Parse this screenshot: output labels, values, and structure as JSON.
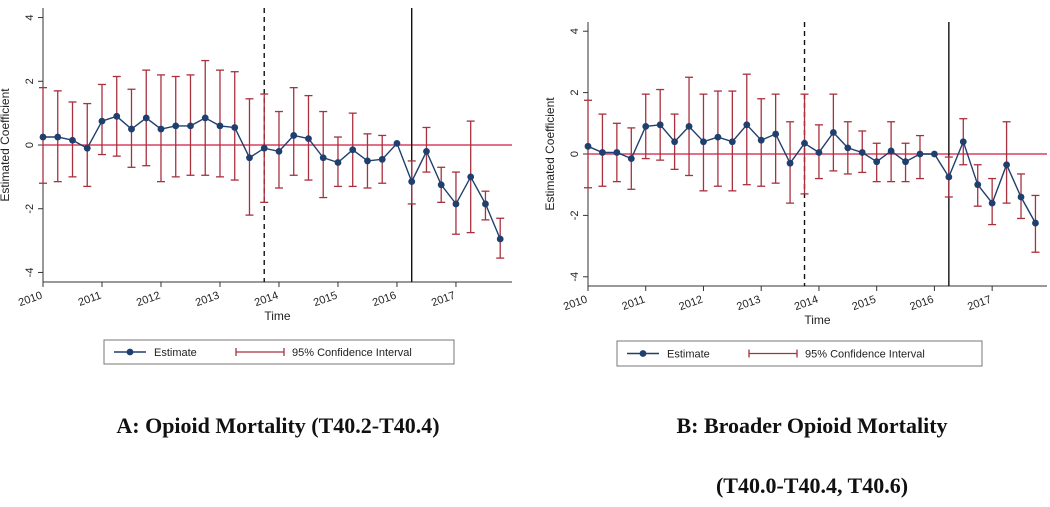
{
  "colors": {
    "estimate": "#1f3f6e",
    "ci": "#a8313e",
    "zero": "#d94060",
    "axis": "#333333"
  },
  "charts": [
    {
      "id": "A",
      "caption_lines": [
        "A: Opioid Mortality (T40.2-T40.4)"
      ],
      "ylabel": "Estimated Coefficient",
      "xlabel": "Time",
      "legend": {
        "estimate": "Estimate",
        "ci": "95% Confidence Interval"
      },
      "y_ticks": [
        "-4",
        "-2",
        "0",
        "2",
        "4"
      ],
      "x_ticks": [
        "2010",
        "2011",
        "2012",
        "2013",
        "2014",
        "2015",
        "2016",
        "2017"
      ]
    },
    {
      "id": "B",
      "caption_lines": [
        "B: Broader Opioid Mortality",
        "(T40.0-T40.4, T40.6)"
      ],
      "ylabel": "Estimated Coefficient",
      "xlabel": "Time",
      "legend": {
        "estimate": "Estimate",
        "ci": "95% Confidence Interval"
      },
      "y_ticks": [
        "-4",
        "-2",
        "0",
        "2",
        "4"
      ],
      "x_ticks": [
        "2010",
        "2011",
        "2012",
        "2013",
        "2014",
        "2015",
        "2016",
        "2017"
      ]
    }
  ],
  "chart_data": [
    {
      "type": "line",
      "title": "A: Opioid Mortality (T40.2-T40.4)",
      "xlabel": "Time",
      "ylabel": "Estimated Coefficient",
      "ylim": [
        -4.3,
        4.3
      ],
      "xlim": [
        2010.0,
        2017.95
      ],
      "vlines": [
        {
          "x": 2013.75,
          "style": "dashed"
        },
        {
          "x": 2016.25,
          "style": "solid"
        }
      ],
      "hline": 0,
      "x": [
        2010.0,
        2010.25,
        2010.5,
        2010.75,
        2011.0,
        2011.25,
        2011.5,
        2011.75,
        2012.0,
        2012.25,
        2012.5,
        2012.75,
        2013.0,
        2013.25,
        2013.5,
        2013.75,
        2014.0,
        2014.25,
        2014.5,
        2014.75,
        2015.0,
        2015.25,
        2015.5,
        2015.75,
        2016.0,
        2016.25,
        2016.5,
        2016.75,
        2017.0,
        2017.25,
        2017.5,
        2017.75
      ],
      "series": [
        {
          "name": "Estimate",
          "values": [
            0.25,
            0.25,
            0.15,
            -0.1,
            0.75,
            0.9,
            0.5,
            0.85,
            0.5,
            0.6,
            0.6,
            0.85,
            0.6,
            0.55,
            -0.4,
            -0.1,
            -0.2,
            0.3,
            0.2,
            -0.4,
            -0.55,
            -0.15,
            -0.5,
            -0.45,
            0.05,
            -1.15,
            -0.2,
            -1.25,
            -1.85,
            -1.0,
            -1.85,
            -2.95
          ]
        },
        {
          "name": "95% Confidence Interval (lower)",
          "values": [
            -1.2,
            -1.15,
            -1.0,
            -1.3,
            -0.3,
            -0.35,
            -0.7,
            -0.65,
            -1.15,
            -1.0,
            -0.95,
            -0.95,
            -1.0,
            -1.1,
            -2.2,
            -1.8,
            -1.35,
            -0.95,
            -1.1,
            -1.65,
            -1.3,
            -1.3,
            -1.35,
            -1.2,
            null,
            -1.85,
            -0.85,
            -1.8,
            -2.8,
            -2.75,
            -2.35,
            -3.55
          ]
        },
        {
          "name": "95% Confidence Interval (upper)",
          "values": [
            1.8,
            1.7,
            1.35,
            1.3,
            1.9,
            2.15,
            1.75,
            2.35,
            2.2,
            2.15,
            2.2,
            2.65,
            2.35,
            2.3,
            1.45,
            1.6,
            1.05,
            1.8,
            1.55,
            1.05,
            0.25,
            1.0,
            0.35,
            0.3,
            null,
            -0.5,
            0.55,
            -0.7,
            -0.85,
            0.75,
            -1.45,
            -2.3
          ]
        }
      ]
    },
    {
      "type": "line",
      "title": "B: Broader Opioid Mortality (T40.0-T40.4, T40.6)",
      "xlabel": "Time",
      "ylabel": "Estimated Coefficient",
      "ylim": [
        -4.3,
        4.3
      ],
      "xlim": [
        2010.0,
        2017.95
      ],
      "vlines": [
        {
          "x": 2013.75,
          "style": "dashed"
        },
        {
          "x": 2016.25,
          "style": "solid"
        }
      ],
      "hline": 0,
      "x": [
        2010.0,
        2010.25,
        2010.5,
        2010.75,
        2011.0,
        2011.25,
        2011.5,
        2011.75,
        2012.0,
        2012.25,
        2012.5,
        2012.75,
        2013.0,
        2013.25,
        2013.5,
        2013.75,
        2014.0,
        2014.25,
        2014.5,
        2014.75,
        2015.0,
        2015.25,
        2015.5,
        2015.75,
        2016.0,
        2016.25,
        2016.5,
        2016.75,
        2017.0,
        2017.25,
        2017.5,
        2017.75
      ],
      "series": [
        {
          "name": "Estimate",
          "values": [
            0.25,
            0.05,
            0.05,
            -0.15,
            0.9,
            0.95,
            0.4,
            0.9,
            0.4,
            0.55,
            0.4,
            0.95,
            0.45,
            0.65,
            -0.3,
            0.35,
            0.05,
            0.7,
            0.2,
            0.05,
            -0.25,
            0.1,
            -0.25,
            0.0,
            0.0,
            -0.75,
            0.4,
            -1.0,
            -1.6,
            -0.35,
            -1.4,
            -2.25
          ]
        },
        {
          "name": "95% Confidence Interval (lower)",
          "values": [
            -1.1,
            -1.05,
            -0.9,
            -1.15,
            -0.15,
            -0.2,
            -0.5,
            -0.7,
            -1.2,
            -1.05,
            -1.2,
            -1.0,
            -1.05,
            -0.95,
            -1.6,
            -1.3,
            -0.8,
            -0.55,
            -0.65,
            -0.6,
            -0.9,
            -0.9,
            -0.9,
            -0.8,
            null,
            -1.4,
            -0.35,
            -1.7,
            -2.3,
            -1.6,
            -2.1,
            -3.2
          ]
        },
        {
          "name": "95% Confidence Interval (upper)",
          "values": [
            1.75,
            1.3,
            1.0,
            0.85,
            1.95,
            2.1,
            1.3,
            2.5,
            1.95,
            2.05,
            2.05,
            2.6,
            1.8,
            1.95,
            1.05,
            1.95,
            0.95,
            1.95,
            1.05,
            0.75,
            0.35,
            1.05,
            0.35,
            0.6,
            null,
            -0.1,
            1.15,
            -0.35,
            -0.8,
            1.05,
            -0.65,
            -1.35
          ]
        }
      ]
    }
  ]
}
